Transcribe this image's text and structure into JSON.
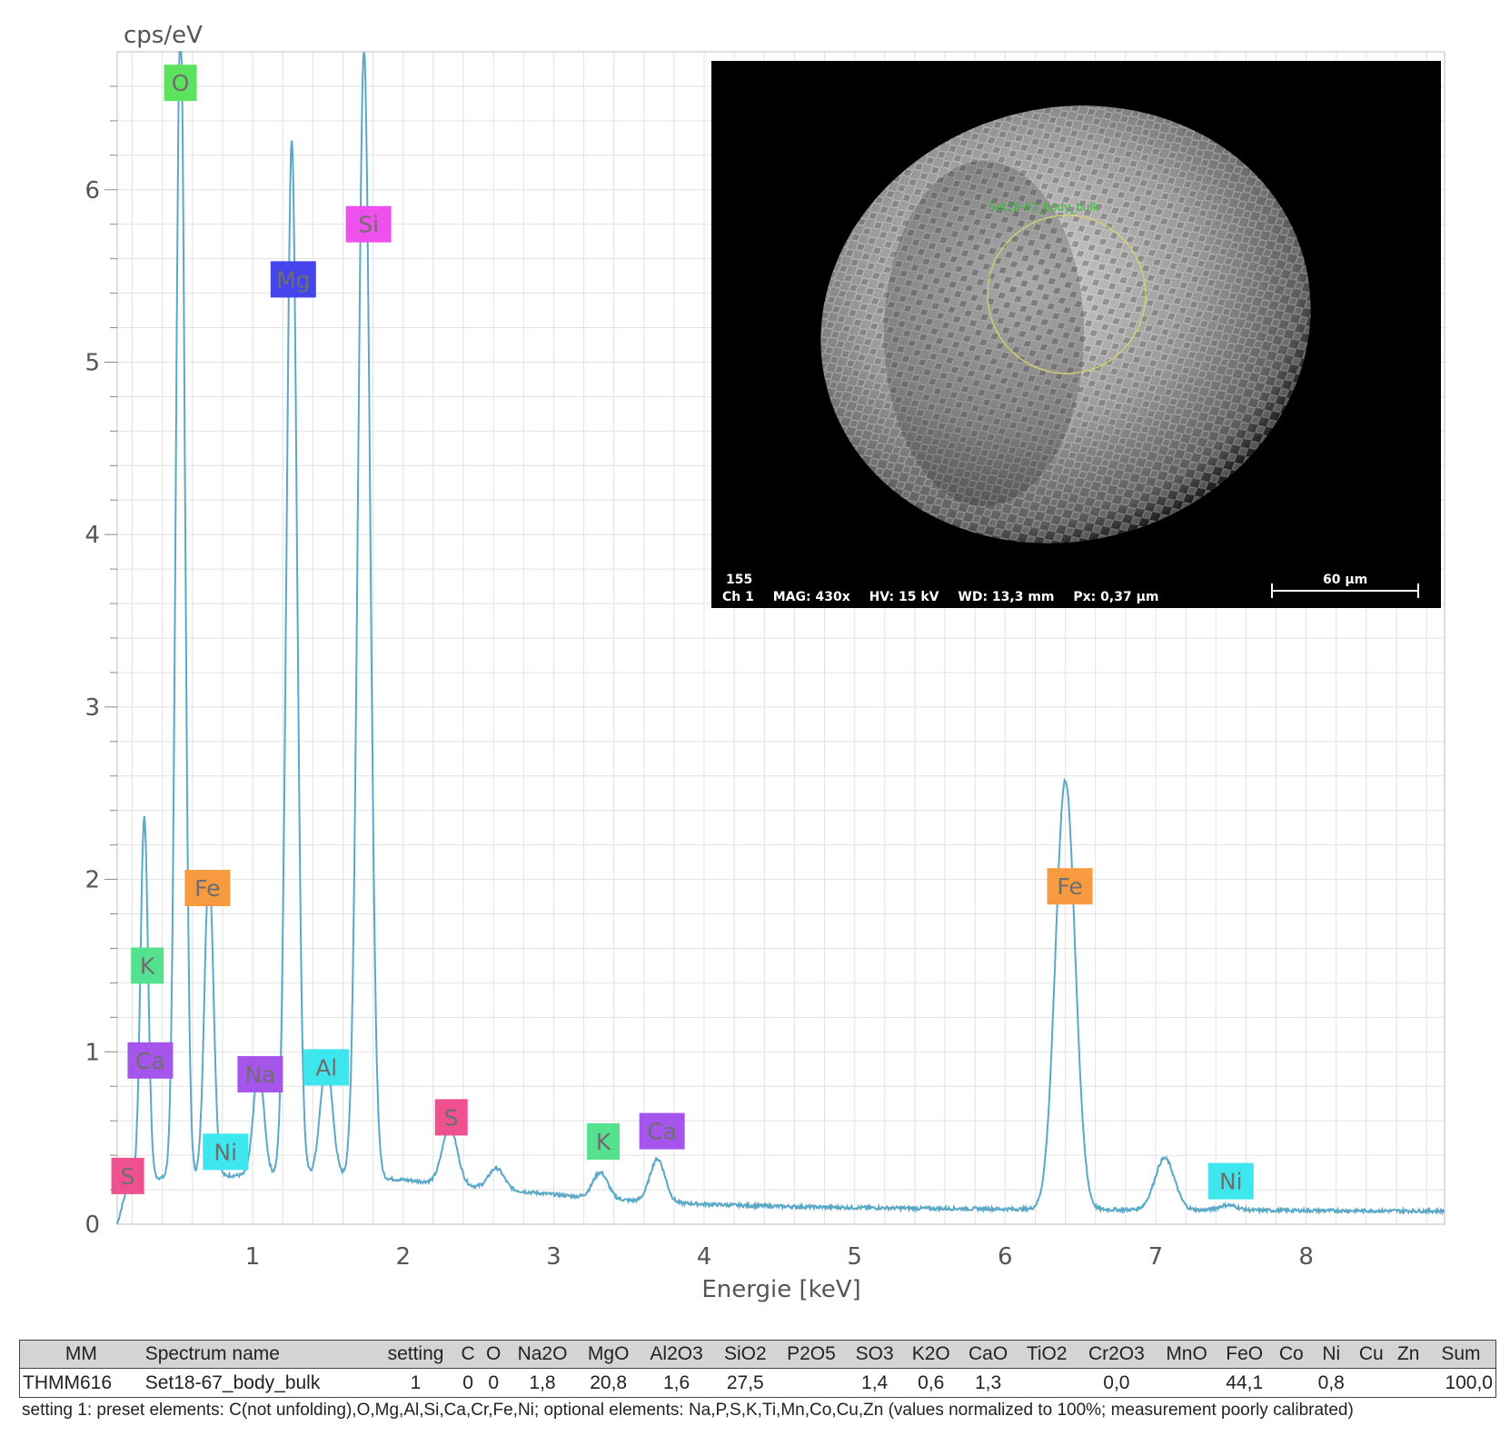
{
  "chart_data": {
    "type": "line",
    "ylabel": "cps/eV",
    "xlabel": "Energie [keV]",
    "xlim": [
      0.1,
      8.92
    ],
    "ylim": [
      0,
      6.8
    ],
    "x_ticks": [
      1,
      2,
      3,
      4,
      5,
      6,
      7,
      8
    ],
    "y_ticks": [
      0,
      1,
      2,
      3,
      4,
      5,
      6
    ],
    "grid": true,
    "series": [
      {
        "color": "#5aa8c8",
        "peaks": [
          {
            "x": 0.28,
            "y": 2.1,
            "w": 0.025
          },
          {
            "x": 0.52,
            "y": 6.8,
            "w": 0.03
          },
          {
            "x": 0.71,
            "y": 1.78,
            "w": 0.03
          },
          {
            "x": 1.04,
            "y": 0.62,
            "w": 0.035
          },
          {
            "x": 1.26,
            "y": 6.0,
            "w": 0.035
          },
          {
            "x": 1.49,
            "y": 0.66,
            "w": 0.04
          },
          {
            "x": 1.74,
            "y": 6.55,
            "w": 0.04
          },
          {
            "x": 2.31,
            "y": 0.33,
            "w": 0.05
          },
          {
            "x": 2.62,
            "y": 0.12,
            "w": 0.05
          },
          {
            "x": 3.31,
            "y": 0.15,
            "w": 0.05
          },
          {
            "x": 3.69,
            "y": 0.25,
            "w": 0.05
          },
          {
            "x": 6.4,
            "y": 2.49,
            "w": 0.065
          },
          {
            "x": 7.06,
            "y": 0.3,
            "w": 0.065
          },
          {
            "x": 7.48,
            "y": 0.03,
            "w": 0.06
          }
        ]
      }
    ],
    "annotations": [
      {
        "text": "O",
        "x": 0.52,
        "y": 6.62,
        "color": "#5de25d"
      },
      {
        "text": "Mg",
        "x": 1.27,
        "y": 5.48,
        "color": "#4545ee"
      },
      {
        "text": "Si",
        "x": 1.77,
        "y": 5.8,
        "color": "#ee50ee"
      },
      {
        "text": "Fe",
        "x": 0.7,
        "y": 1.95,
        "color": "#f79a40"
      },
      {
        "text": "K",
        "x": 0.3,
        "y": 1.5,
        "color": "#55e28e"
      },
      {
        "text": "Ca",
        "x": 0.32,
        "y": 0.95,
        "color": "#a555ec"
      },
      {
        "text": "Na",
        "x": 1.05,
        "y": 0.87,
        "color": "#a555ec"
      },
      {
        "text": "Al",
        "x": 1.49,
        "y": 0.91,
        "color": "#3ee6ee"
      },
      {
        "text": "Ni",
        "x": 0.82,
        "y": 0.42,
        "color": "#3ee6ee"
      },
      {
        "text": "S",
        "x": 0.17,
        "y": 0.28,
        "color": "#ef5090"
      },
      {
        "text": "S",
        "x": 2.32,
        "y": 0.62,
        "color": "#ef5090"
      },
      {
        "text": "K",
        "x": 3.33,
        "y": 0.48,
        "color": "#55e28e"
      },
      {
        "text": "Ca",
        "x": 3.72,
        "y": 0.54,
        "color": "#a555ec"
      },
      {
        "text": "Fe",
        "x": 6.43,
        "y": 1.96,
        "color": "#f79a40"
      },
      {
        "text": "Ni",
        "x": 7.5,
        "y": 0.25,
        "color": "#3ee6ee"
      }
    ]
  },
  "inset": {
    "label": "Set18-67_body_bulk",
    "id": "155",
    "channel": "Ch 1",
    "mag": "MAG: 430x",
    "hv": "HV: 15 kV",
    "wd": "WD: 13,3 mm",
    "px": "Px: 0,37 µm",
    "scale": "60 µm"
  },
  "table": {
    "headers": [
      "MM",
      "Spectrum name",
      "setting",
      "C",
      "O",
      "Na2O",
      "MgO",
      "Al2O3",
      "SiO2",
      "P2O5",
      "SO3",
      "K2O",
      "CaO",
      "TiO2",
      "Cr2O3",
      "MnO",
      "FeO",
      "Co",
      "Ni",
      "Cu",
      "Zn",
      "Sum"
    ],
    "row": [
      "THMM616",
      "Set18-67_body_bulk",
      "1",
      "0",
      "0",
      "1,8",
      "20,8",
      "1,6",
      "27,5",
      "",
      "1,4",
      "0,6",
      "1,3",
      "",
      "0,0",
      "",
      "44,1",
      "",
      "0,8",
      "",
      "",
      "100,0"
    ]
  },
  "footnote": "setting 1: preset elements: C(not unfolding),O,Mg,Al,Si,Ca,Cr,Fe,Ni; optional elements: Na,P,S,K,Ti,Mn,Co,Cu,Zn (values normalized to 100%; measurement poorly calibrated)"
}
